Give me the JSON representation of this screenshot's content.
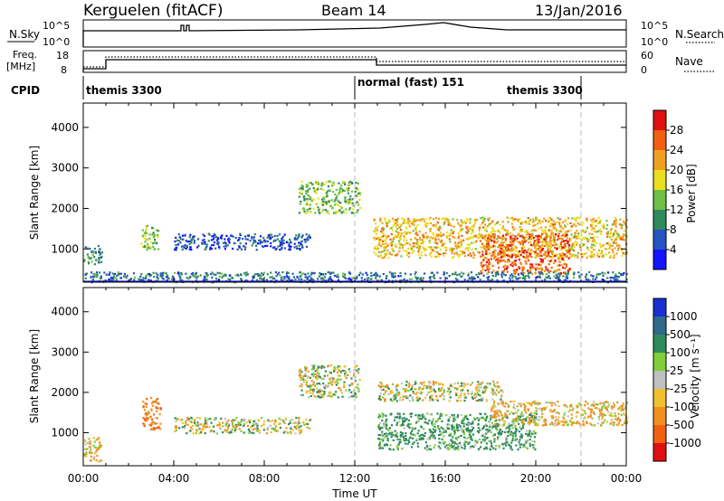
{
  "header": {
    "station": "Kerguelen (fitACF)",
    "beam": "Beam 14",
    "date": "13/Jan/2016"
  },
  "status_panels": {
    "nsky_label": "N.Sky",
    "nsky_ticks": [
      "10^5",
      "10^0"
    ],
    "nsearch_label": "N.Search",
    "nsearch_ticks": [
      "10^5",
      "10^0"
    ],
    "freq_label_line1": "Freq.",
    "freq_label_line2": "[MHz]",
    "freq_ticks": [
      "18",
      "8"
    ],
    "nave_label": "Nave",
    "nave_ticks": [
      "60",
      "0"
    ],
    "cpid_label": "CPID",
    "cpid_segments": [
      {
        "name": "themis 3300",
        "start_hour": 0,
        "end_hour": 12
      },
      {
        "name": "normal (fast) 151",
        "start_hour": 12,
        "end_hour": 22
      },
      {
        "name": "themis 3300",
        "start_hour": 22,
        "end_hour": 24
      }
    ]
  },
  "chart_data": [
    {
      "type": "heatmap",
      "title": "",
      "xlabel": "",
      "ylabel": "Slant Range [km]",
      "xlim_hours": [
        0,
        24
      ],
      "ylim": [
        180,
        4600
      ],
      "y_ticks": [
        1000,
        2000,
        3000,
        4000
      ],
      "colorbar": {
        "label": "Power [dB]",
        "range": [
          0,
          32
        ],
        "ticks": [
          "4",
          "8",
          "12",
          "16",
          "20",
          "24",
          "28"
        ],
        "colors": [
          "#1414ff",
          "#2555c0",
          "#2e8a5c",
          "#6dbf45",
          "#e8e020",
          "#f0a020",
          "#f06010",
          "#e01010"
        ]
      },
      "scatter_regions": [
        {
          "t0": 0.0,
          "t1": 0.8,
          "r0": 600,
          "r1": 1100,
          "value": 10
        },
        {
          "t0": 2.5,
          "t1": 3.3,
          "r0": 1000,
          "r1": 1600,
          "value": 14
        },
        {
          "t0": 4.0,
          "t1": 10.0,
          "r0": 1000,
          "r1": 1400,
          "value": 6
        },
        {
          "t0": 9.5,
          "t1": 12.2,
          "r0": 1900,
          "r1": 2700,
          "value": 14
        },
        {
          "t0": 12.8,
          "t1": 24.0,
          "r0": 800,
          "r1": 1800,
          "value": 20
        },
        {
          "t0": 17.5,
          "t1": 21.5,
          "r0": 400,
          "r1": 1400,
          "value": 26
        },
        {
          "t0": 0.0,
          "t1": 24.0,
          "r0": 200,
          "r1": 450,
          "value": 8
        }
      ]
    },
    {
      "type": "heatmap",
      "title": "",
      "xlabel": "Time UT",
      "ylabel": "Slant Range [km]",
      "xlim_hours": [
        0,
        24
      ],
      "ylim": [
        180,
        4600
      ],
      "y_ticks": [
        1000,
        2000,
        3000,
        4000
      ],
      "x_tick_labels": [
        "00:00",
        "04:00",
        "08:00",
        "12:00",
        "16:00",
        "20:00",
        "00:00"
      ],
      "colorbar": {
        "label": "Velocity [m s⁻¹]",
        "ticks": [
          "1000",
          "500",
          "100",
          "25",
          "-25",
          "-100",
          "-500",
          "-1000"
        ],
        "colors": [
          "#1a2fd0",
          "#2f6a8a",
          "#2f8a5c",
          "#7fce3a",
          "#c0c0c0",
          "#f0c030",
          "#f09020",
          "#f06010",
          "#e01010"
        ]
      },
      "scatter_regions": [
        {
          "t0": 0.0,
          "t1": 0.8,
          "r0": 300,
          "r1": 900,
          "value": -100
        },
        {
          "t0": 2.6,
          "t1": 3.4,
          "r0": 1100,
          "r1": 1900,
          "value": -500
        },
        {
          "t0": 4.0,
          "t1": 10.0,
          "r0": 1000,
          "r1": 1400,
          "value": 0
        },
        {
          "t0": 9.5,
          "t1": 12.2,
          "r0": 1900,
          "r1": 2700,
          "value": 0
        },
        {
          "t0": 13.0,
          "t1": 20.0,
          "r0": 600,
          "r1": 1500,
          "value": 200
        },
        {
          "t0": 18.0,
          "t1": 24.0,
          "r0": 1200,
          "r1": 1800,
          "value": -100
        },
        {
          "t0": 13.0,
          "t1": 18.5,
          "r0": 1800,
          "r1": 2300,
          "value": 0
        }
      ]
    }
  ]
}
